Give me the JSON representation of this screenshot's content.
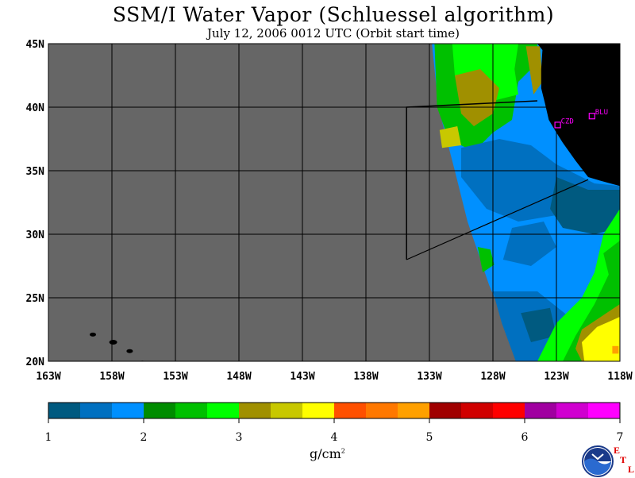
{
  "chart_data": {
    "type": "heatmap",
    "title": "SSM/I Water Vapor (Schluessel algorithm)",
    "subtitle": "July 12, 2006  0012 UTC  (Orbit start time)",
    "x_ticks": [
      "163W",
      "158W",
      "153W",
      "148W",
      "143W",
      "138W",
      "133W",
      "128W",
      "123W",
      "118W"
    ],
    "y_ticks": [
      "45N",
      "40N",
      "35N",
      "30N",
      "25N",
      "20N"
    ],
    "lon_range": [
      -163,
      -118
    ],
    "lat_range": [
      20,
      45
    ],
    "colorbar": {
      "min": 1,
      "max": 7,
      "tick_labels": [
        "1",
        "2",
        "3",
        "4",
        "5",
        "6",
        "7"
      ],
      "units": "g/cm",
      "units_sup": "2",
      "colors": [
        "#005a80",
        "#0070c0",
        "#0090ff",
        "#008c00",
        "#00c000",
        "#00ff00",
        "#a09000",
        "#c8c800",
        "#ffff00",
        "#ff5000",
        "#ff7800",
        "#ffa000",
        "#a00000",
        "#d00000",
        "#ff0000",
        "#a000a0",
        "#d000d0",
        "#ff00ff"
      ]
    },
    "stations": [
      {
        "label": "CZD",
        "lon": -122.9,
        "lat": 38.6
      },
      {
        "label": "BLU",
        "lon": -120.2,
        "lat": 39.3
      }
    ],
    "colors": {
      "no_data": "#666666",
      "land": "#000000",
      "frame": "#000000"
    }
  },
  "logo": {
    "etl": [
      "E",
      "T",
      "L"
    ]
  }
}
